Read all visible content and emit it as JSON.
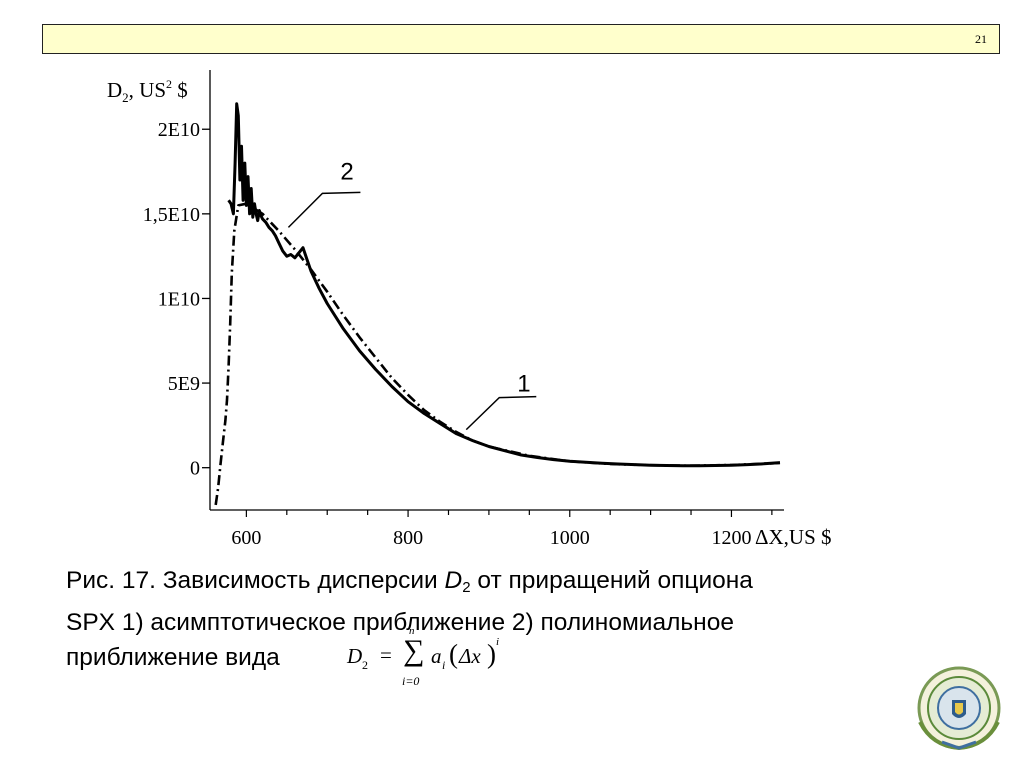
{
  "slide": {
    "page_number": "21"
  },
  "chart_data": {
    "type": "line",
    "title": "",
    "ylabel_main": "D",
    "ylabel_sub": "2",
    "ylabel_rest": ", US",
    "ylabel_sup": "2",
    "ylabel_tail": " $",
    "xlabel": "ΔX,US $",
    "xlim": [
      555,
      1265
    ],
    "ylim": [
      -2500000000,
      23500000000
    ],
    "x_ticks": [
      600,
      800,
      1000,
      1200
    ],
    "x_tick_labels": [
      "600",
      "800",
      "1000",
      "1200"
    ],
    "y_ticks": [
      0,
      5000000000,
      10000000000,
      15000000000,
      20000000000
    ],
    "y_tick_labels": [
      "0",
      "5E9",
      "1E10",
      "1,5E10",
      "2E10"
    ],
    "series": [
      {
        "name": "1",
        "style": "solid",
        "x": [
          578,
          581,
          584,
          586,
          588,
          590,
          592,
          594,
          596,
          598,
          600,
          602,
          604,
          606,
          608,
          610,
          612,
          614,
          616,
          618,
          620,
          624,
          628,
          632,
          636,
          640,
          645,
          650,
          655,
          660,
          665,
          670,
          675,
          680,
          690,
          700,
          720,
          740,
          760,
          780,
          800,
          820,
          840,
          860,
          880,
          900,
          920,
          940,
          960,
          980,
          1000,
          1020,
          1040,
          1060,
          1080,
          1100,
          1120,
          1140,
          1160,
          1180,
          1200,
          1220,
          1240,
          1260
        ],
        "y": [
          15800000000,
          15600000000,
          15000000000,
          18000000000,
          21500000000,
          20800000000,
          17000000000,
          19000000000,
          15800000000,
          18000000000,
          15500000000,
          17200000000,
          15000000000,
          16500000000,
          14800000000,
          15600000000,
          15000000000,
          14600000000,
          15200000000,
          14900000000,
          14700000000,
          14500000000,
          14200000000,
          14000000000,
          13700000000,
          13300000000,
          12800000000,
          12500000000,
          12600000000,
          12400000000,
          12700000000,
          13000000000,
          12300000000,
          11600000000,
          10600000000,
          9700000000,
          8200000000,
          6900000000,
          5800000000,
          4800000000,
          3900000000,
          3200000000,
          2600000000,
          2000000000,
          1600000000,
          1250000000,
          1000000000,
          750000000,
          600000000,
          480000000,
          380000000,
          320000000,
          260000000,
          220000000,
          180000000,
          150000000,
          130000000,
          110000000,
          120000000,
          130000000,
          150000000,
          180000000,
          230000000,
          300000000
        ]
      },
      {
        "name": "2",
        "style": "dash-dot",
        "x": [
          562,
          565,
          568,
          571,
          574,
          576,
          578,
          580,
          582,
          585,
          590,
          600,
          620,
          640,
          660,
          680,
          700,
          720,
          740,
          760,
          780,
          800,
          820,
          840,
          860,
          880,
          900,
          950,
          1000,
          1050,
          1100,
          1150,
          1200,
          1260
        ],
        "y": [
          -2200000000,
          -1200000000,
          200000000,
          1500000000,
          2800000000,
          4000000000,
          6000000000,
          8500000000,
          11500000000,
          14000000000,
          15500000000,
          15600000000,
          15000000000,
          14000000000,
          12900000000,
          11700000000,
          10400000000,
          9000000000,
          7700000000,
          6500000000,
          5300000000,
          4300000000,
          3400000000,
          2700000000,
          2100000000,
          1600000000,
          1250000000,
          700000000,
          380000000,
          220000000,
          150000000,
          120000000,
          160000000,
          280000000
        ]
      }
    ],
    "annotations": [
      "1",
      "2"
    ]
  },
  "caption": {
    "prefix": "Рис. 17. Зависимость дисперсии ",
    "var_main": "D",
    "var_sub": "2",
    "line1_rest": " от приращений опциона",
    "line2": "SPX 1) асимптотическое приближение 2) полиномиальное",
    "line3": "приближение вида"
  },
  "formula": {
    "lhs_main": "D",
    "lhs_sub": "2",
    "equals": "=",
    "sigma": "∑",
    "upper": "n",
    "lower": "i=0",
    "coef_main": "a",
    "coef_sub": "i",
    "paren_open": "(",
    "delta": "Δx",
    "paren_close": ")",
    "power": "i"
  }
}
